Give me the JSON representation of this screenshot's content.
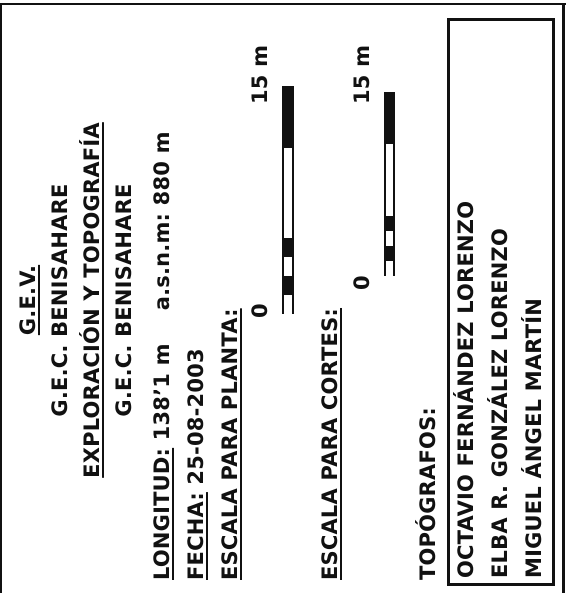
{
  "header": {
    "gev": "G.E.V.",
    "gec_1": "G.E.C. BENISAHARE",
    "exploracion": "EXPLORACIÓN Y TOPOGRAFÍA",
    "gec_2": "G.E.C. BENISAHARE"
  },
  "info": {
    "longitud_label": "LONGITUD:",
    "longitud_value": "138’1 m",
    "altitude_label": "a.s.n.m: 880 m",
    "fecha_label": "FECHA:",
    "fecha_value": "25-08-2003"
  },
  "scales": {
    "planta_label": "ESCALA PARA PLANTA:",
    "cortes_label": "ESCALA PARA CORTES:",
    "zero": "0",
    "max": "15 m"
  },
  "topografos": {
    "label": "TOPÓGRAFOS:",
    "names": [
      "OCTAVIO FERNÁNDEZ LORENZO",
      "ELBA R. GONZÁLEZ LORENZO",
      "MIGUEL ÁNGEL MARTÍN"
    ]
  }
}
